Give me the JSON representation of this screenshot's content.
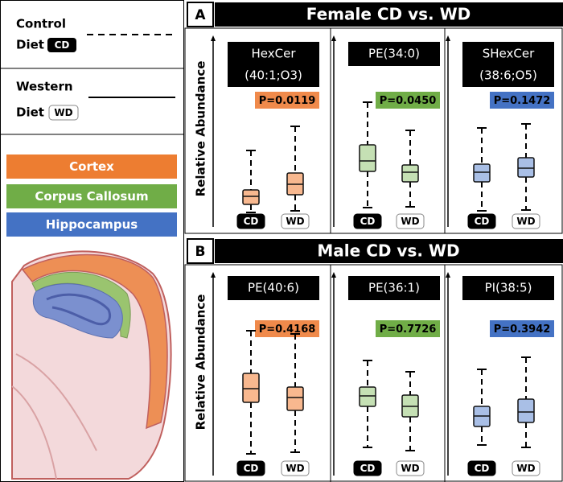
{
  "legend": {
    "control": [
      "Control",
      "Diet"
    ],
    "control_badge": "CD",
    "western": [
      "Western",
      "Diet"
    ],
    "western_badge": "WD",
    "regions": [
      "Cortex",
      "Corpus Callosum",
      "Hippocampus"
    ]
  },
  "panels": [
    {
      "letter": "A",
      "title": "Female CD vs. WD",
      "y_label": "Relative Abundance",
      "plots": [
        {
          "title": [
            "HexCer",
            "(40:1;O3)"
          ],
          "p": "P=0.0119",
          "groups": [
            "CD",
            "WD"
          ]
        },
        {
          "title": [
            "PE(34:0)"
          ],
          "p": "P=0.0450",
          "groups": [
            "CD",
            "WD"
          ]
        },
        {
          "title": [
            "SHexCer",
            "(38:6;O5)"
          ],
          "p": "P=0.1472",
          "groups": [
            "CD",
            "WD"
          ]
        }
      ]
    },
    {
      "letter": "B",
      "title": "Male CD vs. WD",
      "y_label": "Relative Abundance",
      "plots": [
        {
          "title": [
            "PE(40:6)"
          ],
          "p": "P=0.4168",
          "groups": [
            "CD",
            "WD"
          ]
        },
        {
          "title": [
            "PE(36:1)"
          ],
          "p": "P=0.7726",
          "groups": [
            "CD",
            "WD"
          ]
        },
        {
          "title": [
            "PI(38:5)"
          ],
          "p": "P=0.3942",
          "groups": [
            "CD",
            "WD"
          ]
        }
      ]
    }
  ]
}
